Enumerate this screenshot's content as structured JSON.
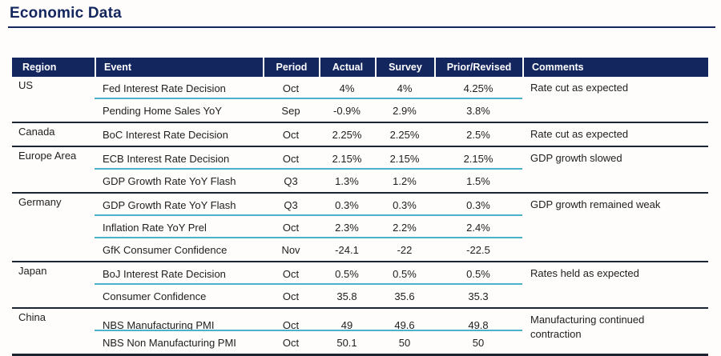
{
  "page": {
    "title": "Economic Data"
  },
  "colors": {
    "navy": "#14265E",
    "cyan": "#4AB3C9",
    "dark": "#1B2430"
  },
  "table": {
    "columns": [
      "Region",
      "Event",
      "Period",
      "Actual",
      "Survey",
      "Prior/Revised",
      "Comments"
    ],
    "groups": [
      {
        "region": "US",
        "comment": "Rate cut as expected",
        "rows": [
          {
            "event": "Fed Interest Rate Decision",
            "period": "Oct",
            "actual": "4%",
            "survey": "4%",
            "prior": "4.25%"
          },
          {
            "event": "Pending Home Sales YoY",
            "period": "Sep",
            "actual": "-0.9%",
            "survey": "2.9%",
            "prior": "3.8%"
          }
        ]
      },
      {
        "region": "Canada",
        "comment": "Rate cut as expected",
        "rows": [
          {
            "event": "BoC Interest Rate Decision",
            "period": "Oct",
            "actual": "2.25%",
            "survey": "2.25%",
            "prior": "2.5%"
          }
        ]
      },
      {
        "region": "Europe Area",
        "comment": "GDP growth slowed",
        "rows": [
          {
            "event": "ECB Interest Rate Decision",
            "period": "Oct",
            "actual": "2.15%",
            "survey": "2.15%",
            "prior": "2.15%"
          },
          {
            "event": "GDP Growth Rate YoY Flash",
            "period": "Q3",
            "actual": "1.3%",
            "survey": "1.2%",
            "prior": "1.5%"
          }
        ]
      },
      {
        "region": "Germany",
        "comment": "GDP growth remained weak",
        "rows": [
          {
            "event": "GDP Growth Rate YoY Flash",
            "period": "Q3",
            "actual": "0.3%",
            "survey": "0.3%",
            "prior": "0.3%"
          },
          {
            "event": "Inflation Rate YoY Prel",
            "period": "Oct",
            "actual": "2.3%",
            "survey": "2.2%",
            "prior": "2.4%"
          },
          {
            "event": "GfK Consumer Confidence",
            "period": "Nov",
            "actual": "-24.1",
            "survey": "-22",
            "prior": "-22.5"
          }
        ]
      },
      {
        "region": "Japan",
        "comment": "Rates held as expected",
        "rows": [
          {
            "event": "BoJ Interest Rate Decision",
            "period": "Oct",
            "actual": "0.5%",
            "survey": "0.5%",
            "prior": "0.5%"
          },
          {
            "event": "Consumer Confidence",
            "period": "Oct",
            "actual": "35.8",
            "survey": "35.6",
            "prior": "35.3"
          }
        ]
      },
      {
        "region": "China",
        "comment": "Manufacturing continued contraction",
        "rows": [
          {
            "event": "NBS Manufacturing PMI",
            "period": "Oct",
            "actual": "49",
            "survey": "49.6",
            "prior": "49.8"
          },
          {
            "event": "NBS Non Manufacturing PMI",
            "period": "Oct",
            "actual": "50.1",
            "survey": "50",
            "prior": "50"
          }
        ]
      }
    ]
  }
}
